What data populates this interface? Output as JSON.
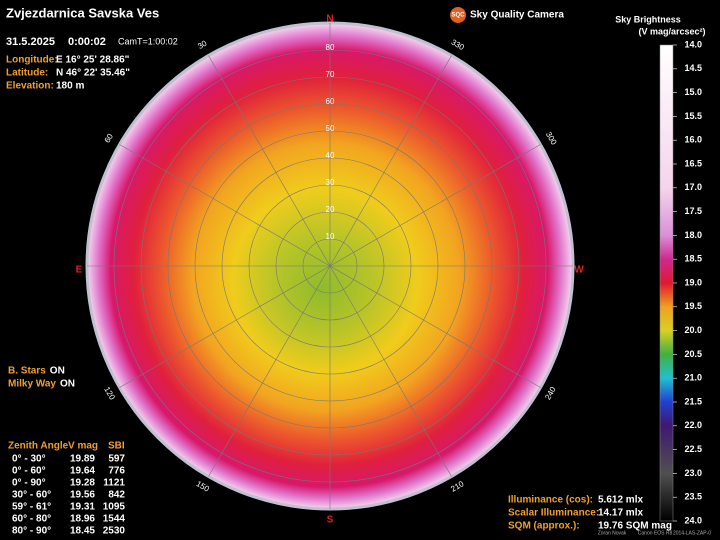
{
  "header": {
    "title": "Zvjezdarnica Savska Ves",
    "date": "31.5.2025",
    "time": "0:00:02",
    "camt": "CamT=1:00:02"
  },
  "location": [
    {
      "label": "Longitude:",
      "value": "E 16° 25' 28.86\""
    },
    {
      "label": "Latitude:",
      "value": "N 46° 22' 35.46\""
    },
    {
      "label": "Elevation:",
      "value": "180 m"
    }
  ],
  "logo": {
    "badge": "SQC",
    "text": "Sky Quality Camera"
  },
  "compass": {
    "north": "N",
    "south": "S",
    "east": "E",
    "west": "W"
  },
  "zenith_labels": [
    "10",
    "20",
    "30",
    "40",
    "50",
    "60",
    "70",
    "80"
  ],
  "azimuth_labels": [
    "30",
    "60",
    "120",
    "150",
    "210",
    "240",
    "300",
    "330"
  ],
  "toggles": [
    {
      "label": "B. Stars",
      "state": "ON"
    },
    {
      "label": "Milky Way",
      "state": "ON"
    }
  ],
  "table": {
    "header": [
      "Zenith Angle",
      "V mag",
      "SBI"
    ],
    "rows": [
      [
        "0° - 30°",
        "19.89",
        "597"
      ],
      [
        "0° - 60°",
        "19.64",
        "776"
      ],
      [
        "0° - 90°",
        "19.28",
        "1121"
      ],
      [
        "30° - 60°",
        "19.56",
        "842"
      ],
      [
        "59° - 61°",
        "19.31",
        "1095"
      ],
      [
        "60° - 80°",
        "18.96",
        "1544"
      ],
      [
        "80° - 90°",
        "18.45",
        "2530"
      ]
    ]
  },
  "illuminance": [
    {
      "label": "Illuminance (cos):",
      "value": "5.612 mlx"
    },
    {
      "label": "Scalar Illuminance:",
      "value": "14.17 mlx"
    },
    {
      "label": "SQM (approx.):",
      "value": "19.76 SQM mag"
    }
  ],
  "colorbar": {
    "title": "Sky Brightness",
    "unit": "(V mag/arcsec²)",
    "ticks": [
      "14.0",
      "14.5",
      "15.0",
      "15.5",
      "16.0",
      "16.5",
      "17.0",
      "17.5",
      "18.0",
      "18.5",
      "19.0",
      "19.5",
      "20.0",
      "20.5",
      "21.0",
      "21.5",
      "22.0",
      "22.5",
      "23.0",
      "23.5",
      "24.0"
    ]
  },
  "credits": [
    "Zoran Novak",
    "Canon EOS R8",
    "2014-LAS-ZAP-0"
  ]
}
